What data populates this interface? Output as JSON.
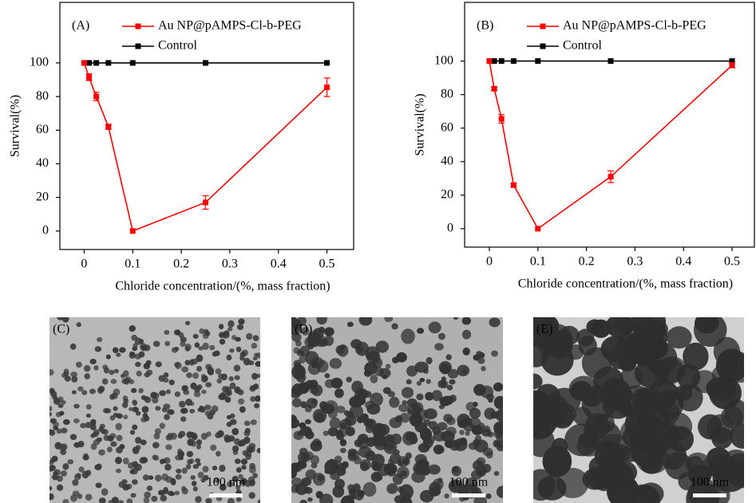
{
  "chart_data": [
    {
      "type": "line",
      "label": "(A)",
      "x_label": "Chloride concentration/(%, mass fraction)",
      "y_label": "Survival(%)",
      "x": [
        0,
        0.01,
        0.025,
        0.05,
        0.1,
        0.25,
        0.5
      ],
      "series": [
        {
          "name": "Au NP@pAMPS-Cl-b-PEG",
          "color": "#ff0000",
          "values": [
            100,
            91.5,
            80,
            62,
            0,
            17,
            85.5
          ],
          "errors": [
            0,
            2,
            2.5,
            1.5,
            0,
            4,
            5.5
          ]
        },
        {
          "name": "Control",
          "color": "#000000",
          "values": [
            100,
            100,
            100,
            100,
            100,
            100,
            100
          ]
        }
      ],
      "xlim": [
        -0.05,
        0.555
      ],
      "xticks": [
        0,
        0.1,
        0.2,
        0.3,
        0.4,
        0.5
      ],
      "ylim": [
        -11,
        136
      ],
      "yticks": [
        0,
        20,
        40,
        60,
        80,
        100
      ]
    },
    {
      "type": "line",
      "label": "(B)",
      "x_label": "Chloride concentration/(%, mass fraction)",
      "y_label": "Survival(%)",
      "x": [
        0,
        0.01,
        0.025,
        0.05,
        0.1,
        0.25,
        0.5
      ],
      "series": [
        {
          "name": "Au NP@pAMPS-Cl-b-PEG",
          "color": "#ff0000",
          "values": [
            100,
            83.5,
            65.5,
            26,
            0,
            31,
            97.5
          ],
          "errors": [
            0,
            1,
            2.5,
            1,
            0,
            3.5,
            1.5
          ]
        },
        {
          "name": "Control",
          "color": "#000000",
          "values": [
            100,
            100,
            100,
            100,
            100,
            100,
            100
          ]
        }
      ],
      "xlim": [
        -0.051,
        0.546
      ],
      "xticks": [
        0,
        0.1,
        0.2,
        0.3,
        0.4,
        0.5
      ],
      "ylim": [
        -11,
        135
      ],
      "yticks": [
        0,
        20,
        40,
        60,
        80,
        100
      ]
    }
  ],
  "images": [
    {
      "label": "(C)",
      "scale": "100 nm"
    },
    {
      "label": "(D)",
      "scale": "100 nm"
    },
    {
      "label": "(E)",
      "scale": "100 nm"
    }
  ]
}
